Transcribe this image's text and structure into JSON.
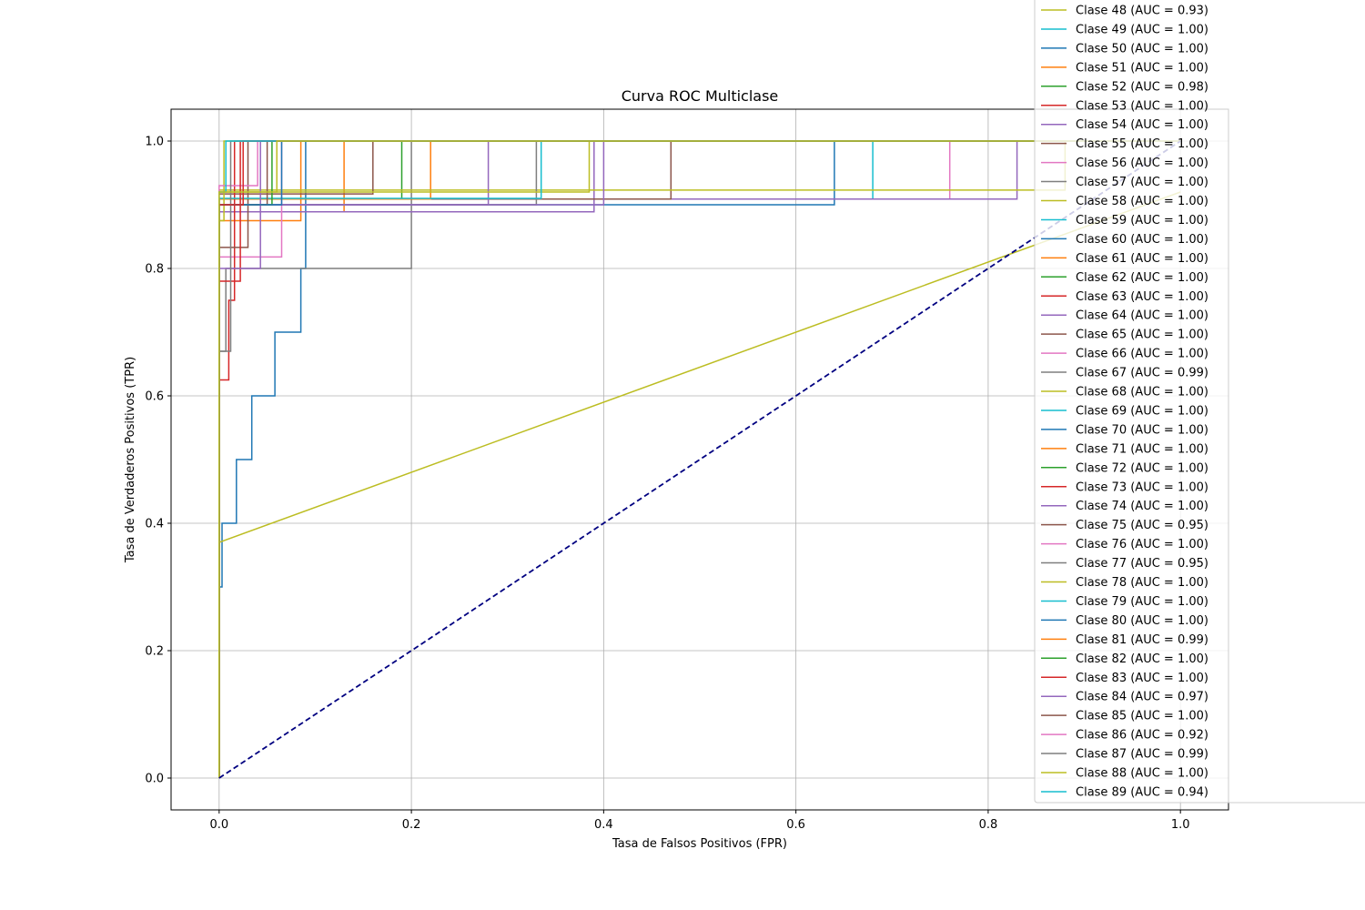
{
  "chart_data": {
    "type": "line",
    "title": "Curva ROC Multiclase",
    "xlabel": "Tasa de Falsos Positivos (FPR)",
    "ylabel": "Tasa de Verdaderos Positivos (TPR)",
    "xlim": [
      -0.05,
      1.05
    ],
    "ylim": [
      -0.05,
      1.05
    ],
    "xticks": [
      "0.0",
      "0.2",
      "0.4",
      "0.6",
      "0.8",
      "1.0"
    ],
    "yticks": [
      "0.0",
      "0.2",
      "0.4",
      "0.6",
      "0.8",
      "1.0"
    ],
    "grid": true,
    "legend_position": "upper-right, overflowing above the axes",
    "diagonal": {
      "x": [
        0,
        1
      ],
      "y": [
        0,
        1
      ],
      "color": "#000080",
      "style": "dashed"
    },
    "palette": [
      "#1f77b4",
      "#ff7f0e",
      "#2ca02c",
      "#d62728",
      "#9467bd",
      "#8c564b",
      "#e377c2",
      "#7f7f7f",
      "#bcbd22",
      "#17becf"
    ],
    "legend": [
      "Clase 48 (AUC = 0.93)",
      "Clase 49 (AUC = 1.00)",
      "Clase 50 (AUC = 1.00)",
      "Clase 51 (AUC = 1.00)",
      "Clase 52 (AUC = 0.98)",
      "Clase 53 (AUC = 1.00)",
      "Clase 54 (AUC = 1.00)",
      "Clase 55 (AUC = 1.00)",
      "Clase 56 (AUC = 1.00)",
      "Clase 57 (AUC = 1.00)",
      "Clase 58 (AUC = 1.00)",
      "Clase 59 (AUC = 1.00)",
      "Clase 60 (AUC = 1.00)",
      "Clase 61 (AUC = 1.00)",
      "Clase 62 (AUC = 1.00)",
      "Clase 63 (AUC = 1.00)",
      "Clase 64 (AUC = 1.00)",
      "Clase 65 (AUC = 1.00)",
      "Clase 66 (AUC = 1.00)",
      "Clase 67 (AUC = 0.99)",
      "Clase 68 (AUC = 1.00)",
      "Clase 69 (AUC = 1.00)",
      "Clase 70 (AUC = 1.00)",
      "Clase 71 (AUC = 1.00)",
      "Clase 72 (AUC = 1.00)",
      "Clase 73 (AUC = 1.00)",
      "Clase 74 (AUC = 1.00)",
      "Clase 75 (AUC = 0.95)",
      "Clase 76 (AUC = 1.00)",
      "Clase 77 (AUC = 0.95)",
      "Clase 78 (AUC = 1.00)",
      "Clase 79 (AUC = 1.00)",
      "Clase 80 (AUC = 1.00)",
      "Clase 81 (AUC = 0.99)",
      "Clase 82 (AUC = 1.00)",
      "Clase 83 (AUC = 1.00)",
      "Clase 84 (AUC = 0.97)",
      "Clase 85 (AUC = 1.00)",
      "Clase 86 (AUC = 0.92)",
      "Clase 87 (AUC = 0.99)",
      "Clase 88 (AUC = 1.00)",
      "Clase 89 (AUC = 0.94)"
    ],
    "legend_colors": [
      "#bcbd22",
      "#17becf",
      "#1f77b4",
      "#ff7f0e",
      "#2ca02c",
      "#d62728",
      "#9467bd",
      "#8c564b",
      "#e377c2",
      "#7f7f7f",
      "#bcbd22",
      "#17becf",
      "#1f77b4",
      "#ff7f0e",
      "#2ca02c",
      "#d62728",
      "#9467bd",
      "#8c564b",
      "#e377c2",
      "#7f7f7f",
      "#bcbd22",
      "#17becf",
      "#1f77b4",
      "#ff7f0e",
      "#2ca02c",
      "#d62728",
      "#9467bd",
      "#8c564b",
      "#e377c2",
      "#7f7f7f",
      "#bcbd22",
      "#17becf",
      "#1f77b4",
      "#ff7f0e",
      "#2ca02c",
      "#d62728",
      "#9467bd",
      "#8c564b",
      "#e377c2",
      "#7f7f7f",
      "#bcbd22",
      "#17becf"
    ],
    "curves": [
      {
        "color": "#1f77b4",
        "x": [
          0,
          0,
          0.003,
          0.003,
          0.018,
          0.018,
          0.034,
          0.034,
          0.058,
          0.058,
          0.085,
          0.085,
          0.09,
          0.09,
          1
        ],
        "y": [
          0,
          0.3,
          0.3,
          0.4,
          0.4,
          0.5,
          0.5,
          0.6,
          0.6,
          0.7,
          0.7,
          0.8,
          0.8,
          1,
          1
        ]
      },
      {
        "color": "#7f7f7f",
        "x": [
          0,
          0,
          0.007,
          0.007,
          0.2,
          0.2,
          1
        ],
        "y": [
          0,
          0.67,
          0.67,
          0.8,
          0.8,
          1,
          1
        ]
      },
      {
        "color": "#1f77b4",
        "x": [
          0,
          0,
          0.64,
          0.64,
          1
        ],
        "y": [
          0,
          0.9,
          0.9,
          1,
          1
        ]
      },
      {
        "color": "#ff7f0e",
        "x": [
          0,
          0,
          0.02,
          0.02,
          0.085,
          0.085,
          1
        ],
        "y": [
          0,
          0.875,
          0.875,
          0.875,
          0.875,
          1,
          1
        ]
      },
      {
        "color": "#ff7f0e",
        "x": [
          0,
          0,
          0.13,
          0.13,
          1
        ],
        "y": [
          0,
          0.889,
          0.889,
          1,
          1
        ]
      },
      {
        "color": "#9467bd",
        "x": [
          0,
          0,
          0.39,
          0.39,
          1
        ],
        "y": [
          0,
          0.889,
          0.889,
          1,
          1
        ]
      },
      {
        "color": "#17becf",
        "x": [
          0,
          0,
          0.68,
          0.68,
          1
        ],
        "y": [
          0,
          0.909,
          0.909,
          1,
          1
        ]
      },
      {
        "color": "#e377c2",
        "x": [
          0,
          0,
          0.76,
          0.76,
          1
        ],
        "y": [
          0,
          0.909,
          0.909,
          1,
          1
        ]
      },
      {
        "color": "#9467bd",
        "x": [
          0,
          0,
          0.83,
          0.83,
          1
        ],
        "y": [
          0,
          0.909,
          0.909,
          1,
          1
        ]
      },
      {
        "color": "#8c564b",
        "x": [
          0,
          0,
          0.47,
          0.47,
          1
        ],
        "y": [
          0,
          0.909,
          0.909,
          1,
          1
        ]
      },
      {
        "color": "#2ca02c",
        "x": [
          0,
          0,
          0.19,
          0.19,
          1
        ],
        "y": [
          0,
          0.909,
          0.909,
          1,
          1
        ]
      },
      {
        "color": "#ff7f0e",
        "x": [
          0,
          0,
          0.22,
          0.22,
          1
        ],
        "y": [
          0,
          0.909,
          0.909,
          1,
          1
        ]
      },
      {
        "color": "#bcbd22",
        "x": [
          0,
          0,
          0.88,
          0.88,
          1
        ],
        "y": [
          0,
          0.923,
          0.923,
          1,
          1
        ]
      },
      {
        "color": "#8c564b",
        "x": [
          0,
          0,
          0.16,
          0.16,
          1
        ],
        "y": [
          0,
          0.917,
          0.917,
          1,
          1
        ]
      },
      {
        "color": "#e377c2",
        "x": [
          0,
          0,
          0.065,
          0.065,
          1
        ],
        "y": [
          0,
          0.818,
          0.818,
          1,
          1
        ]
      },
      {
        "color": "#d62728",
        "x": [
          0,
          0,
          0.01,
          0.01,
          0.016,
          0.016,
          1
        ],
        "y": [
          0,
          0.625,
          0.625,
          0.75,
          0.75,
          1,
          1
        ]
      },
      {
        "color": "#8c564b",
        "x": [
          0,
          0,
          0.03,
          0.03,
          1
        ],
        "y": [
          0,
          0.833,
          0.833,
          1,
          1
        ]
      },
      {
        "color": "#9467bd",
        "x": [
          0,
          0,
          0.28,
          0.28,
          1
        ],
        "y": [
          0,
          0.9,
          0.9,
          1,
          1
        ]
      },
      {
        "color": "#7f7f7f",
        "x": [
          0,
          0,
          0.33,
          0.33,
          1
        ],
        "y": [
          0,
          0.9,
          0.9,
          1,
          1
        ]
      },
      {
        "color": "#bcbd22",
        "x": [
          0,
          0,
          0.385,
          0.385,
          1
        ],
        "y": [
          0,
          0.92,
          0.92,
          1,
          1
        ]
      },
      {
        "color": "#17becf",
        "x": [
          0,
          0,
          0.335,
          0.335,
          1
        ],
        "y": [
          0,
          0.91,
          0.91,
          1,
          1
        ]
      },
      {
        "color": "#9467bd",
        "x": [
          0,
          0,
          0.4,
          0.4,
          1
        ],
        "y": [
          0,
          0.9,
          0.9,
          1,
          1
        ]
      },
      {
        "color": "#bcbd22",
        "x": [
          0,
          0,
          1
        ],
        "y": [
          0,
          0.37,
          0.92
        ]
      },
      {
        "color": "#bcbd22",
        "x": [
          0,
          0,
          0.005,
          0.005,
          1
        ],
        "y": [
          0,
          0.875,
          0.875,
          1,
          1
        ]
      },
      {
        "color": "#e377c2",
        "x": [
          0,
          0,
          0.04,
          0.04,
          1
        ],
        "y": [
          0,
          0.93,
          0.93,
          1,
          1
        ]
      },
      {
        "color": "#d62728",
        "x": [
          0,
          0,
          0.022,
          0.022,
          1
        ],
        "y": [
          0,
          0.78,
          0.78,
          1,
          1
        ]
      },
      {
        "color": "#2ca02c",
        "x": [
          0,
          0,
          0.055,
          0.055,
          1
        ],
        "y": [
          0,
          0.9,
          0.9,
          1,
          1
        ]
      },
      {
        "color": "#9467bd",
        "x": [
          0,
          0,
          0.043,
          0.043,
          1
        ],
        "y": [
          0,
          0.8,
          0.8,
          1,
          1
        ]
      },
      {
        "color": "#8c564b",
        "x": [
          0,
          0,
          0.05,
          0.05,
          1
        ],
        "y": [
          0,
          0.9,
          0.9,
          1,
          1
        ]
      },
      {
        "color": "#1f77b4",
        "x": [
          0,
          0,
          0.065,
          0.065,
          1
        ],
        "y": [
          0,
          0.9,
          0.9,
          1,
          1
        ]
      },
      {
        "color": "#7f7f7f",
        "x": [
          0,
          0,
          0.012,
          0.012,
          1
        ],
        "y": [
          0,
          0.67,
          0.67,
          1,
          1
        ]
      },
      {
        "color": "#d62728",
        "x": [
          0,
          0,
          0.025,
          0.025,
          1
        ],
        "y": [
          0,
          0.9,
          0.9,
          1,
          1
        ]
      },
      {
        "color": "#17becf",
        "x": [
          0,
          0,
          0.007,
          0.007,
          1
        ],
        "y": [
          0,
          0.92,
          0.92,
          1,
          1
        ]
      },
      {
        "color": "#bcbd22",
        "x": [
          0,
          0,
          0.06,
          0.06,
          1
        ],
        "y": [
          0,
          0.92,
          0.92,
          1,
          1
        ]
      }
    ]
  }
}
